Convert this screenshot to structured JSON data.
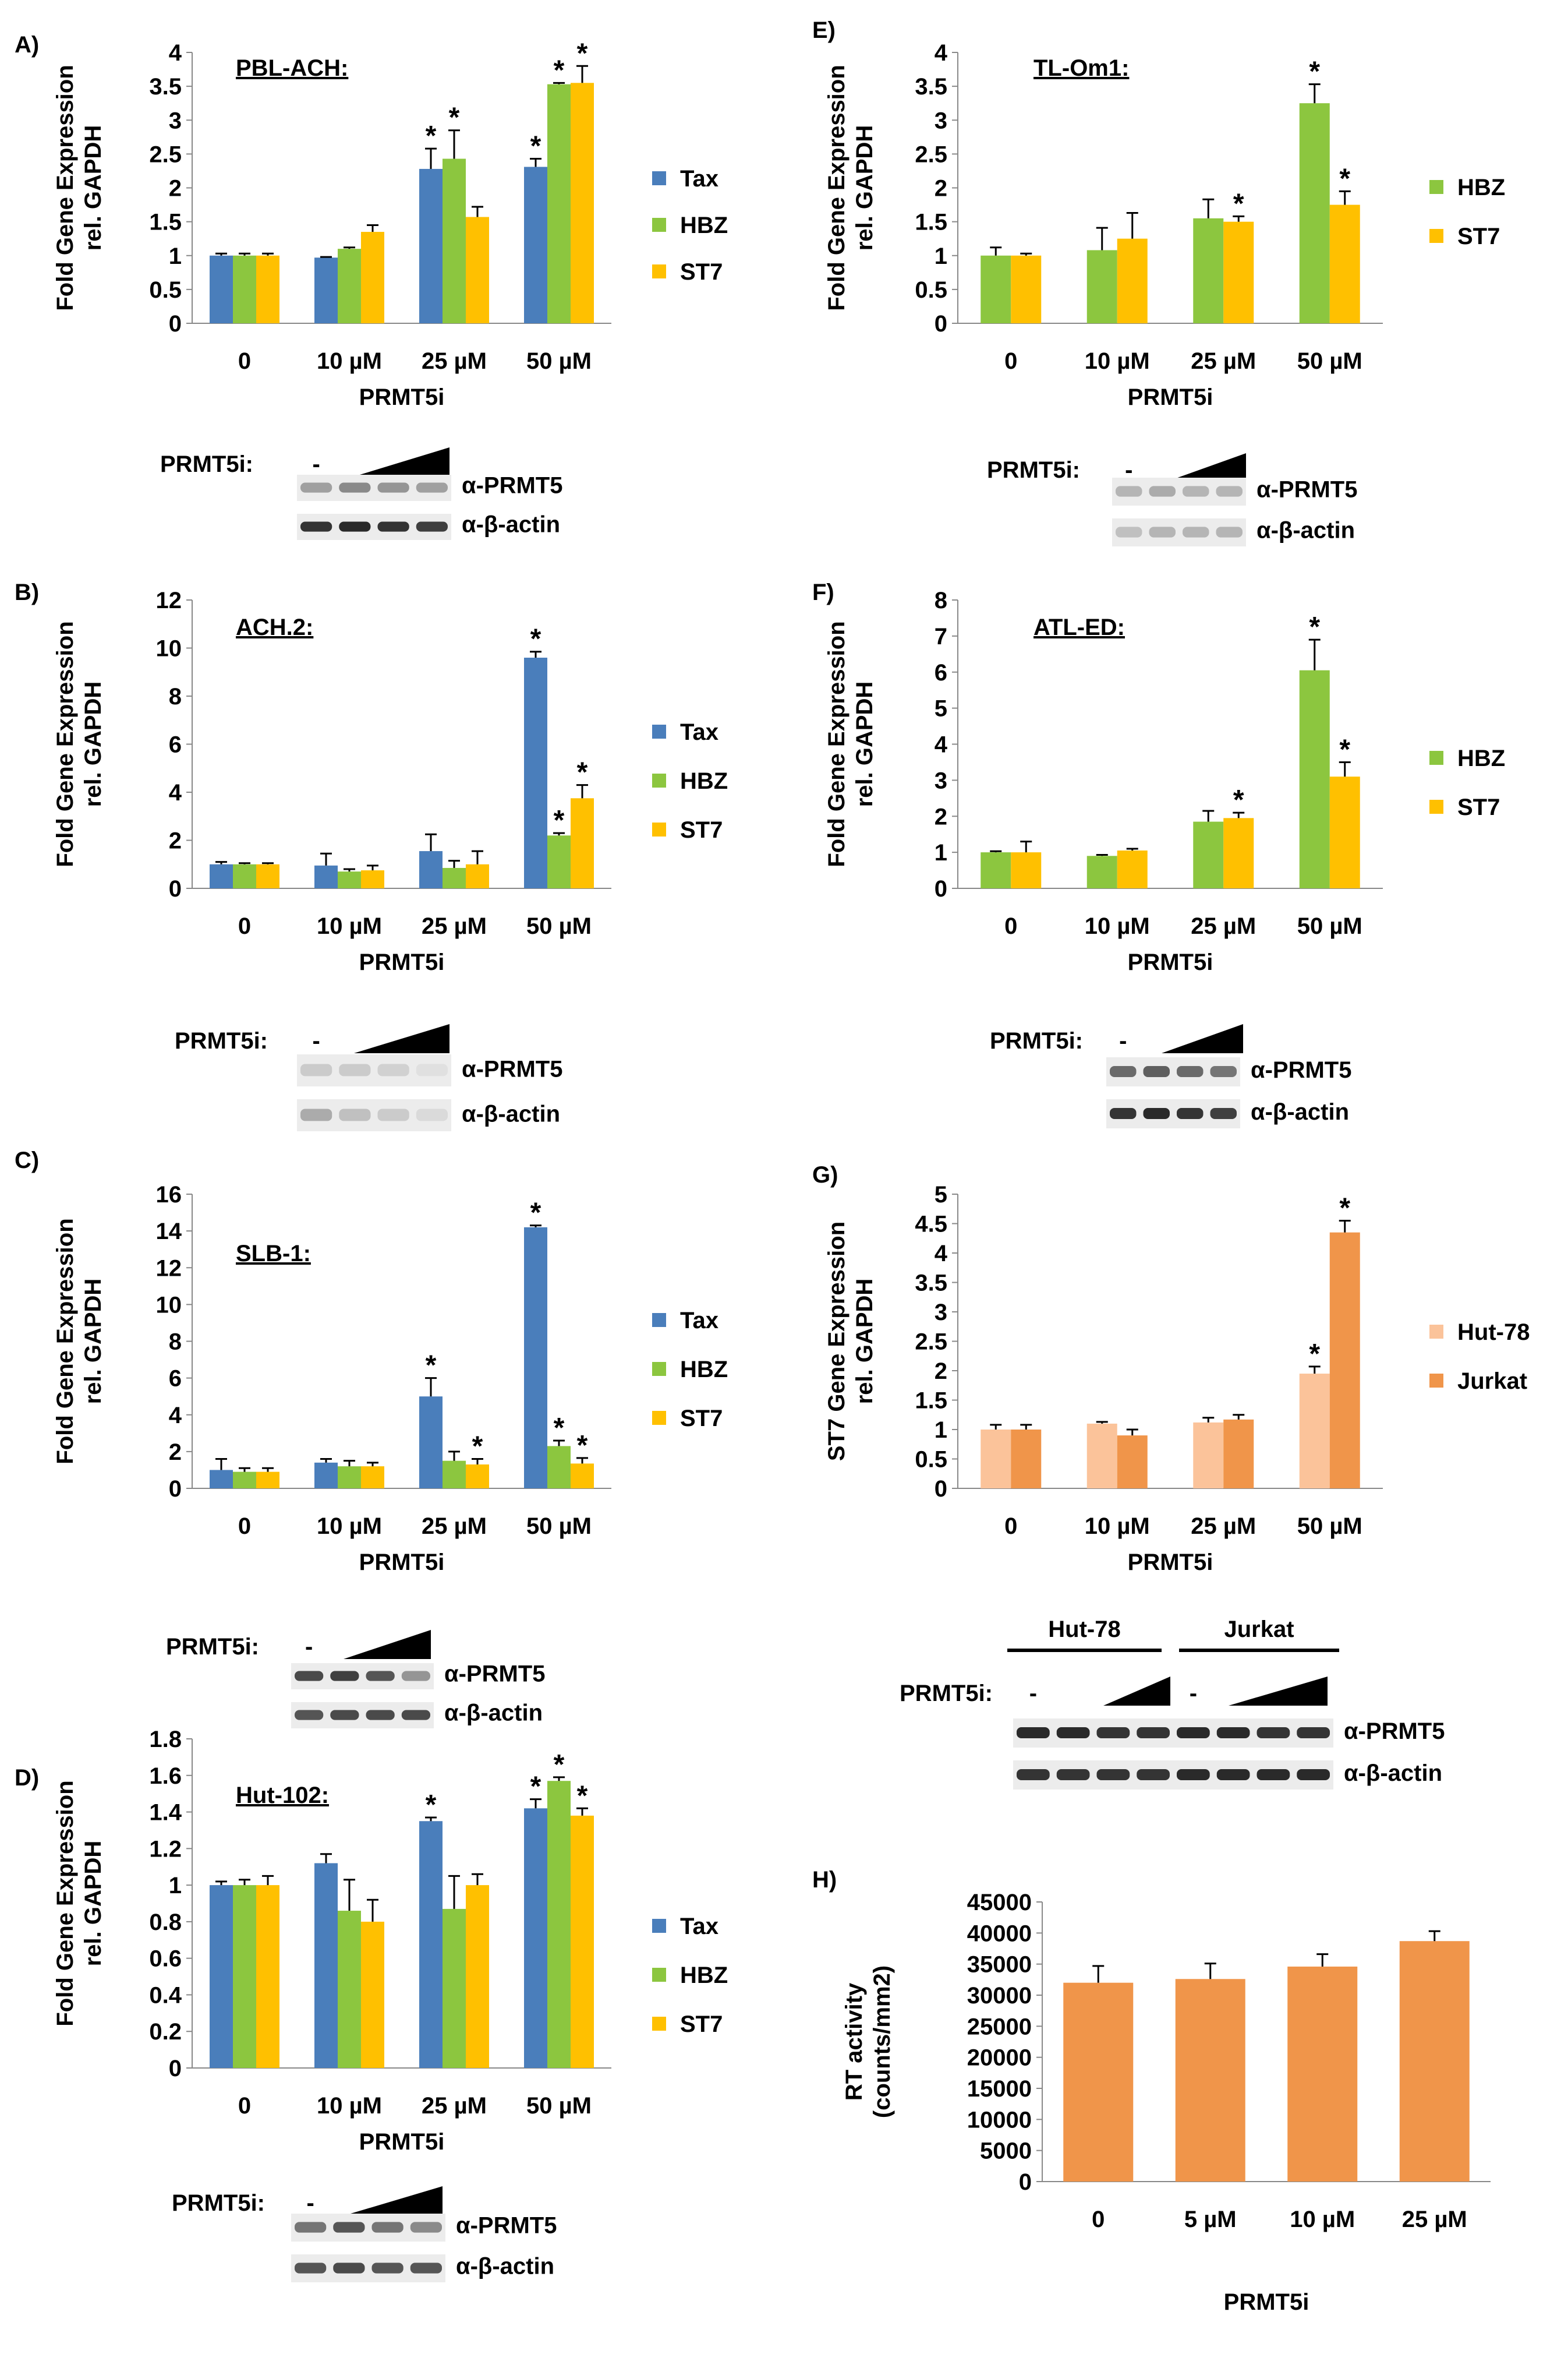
{
  "figure": {
    "panels": [
      {
        "letter": "A)",
        "cell_line": "PBL-ACH:"
      },
      {
        "letter": "B)",
        "cell_line": "ACH.2:"
      },
      {
        "letter": "C)",
        "cell_line": "SLB-1:"
      },
      {
        "letter": "D)",
        "cell_line": "Hut-102:"
      },
      {
        "letter": "E)",
        "cell_line": "TL-Om1:"
      },
      {
        "letter": "F)",
        "cell_line": "ATL-ED:"
      },
      {
        "letter": "G)",
        "cell_line": ""
      },
      {
        "letter": "H)",
        "cell_line": ""
      }
    ],
    "blots": {
      "treatment_label": "PRMT5i:",
      "minus_label": "-",
      "prmt5_label": "α-PRMT5",
      "actin_label": "α-β-actin",
      "group_labels": [
        "Hut-78",
        "Jurkat"
      ]
    },
    "colors": {
      "Tax": "#4a7ebb",
      "HBZ": "#8cc63f",
      "ST7": "#ffc000",
      "Hut-78": "#fbc39a",
      "Jurkat": "#f0954a",
      "RT": "#f0954a"
    }
  },
  "chart_data": [
    {
      "type": "bar",
      "panel": "A)",
      "title": "PBL-ACH:",
      "ylabel": "Fold Gene Expression rel. GAPDH",
      "xlabel": "PRMT5i",
      "categories": [
        "0",
        "10 µM",
        "25 µM",
        "50 µM"
      ],
      "ylim": [
        0,
        4
      ],
      "yticks": [
        "0",
        "0.5",
        "1",
        "1.5",
        "2",
        "2.5",
        "3",
        "3.5",
        "4"
      ],
      "series": [
        {
          "name": "Tax",
          "values": [
            1.0,
            0.97,
            2.28,
            2.31
          ],
          "errors": [
            0.03,
            0.01,
            0.3,
            0.12
          ],
          "sig": [
            false,
            false,
            true,
            true
          ]
        },
        {
          "name": "HBZ",
          "values": [
            1.0,
            1.1,
            2.43,
            3.53
          ],
          "errors": [
            0.03,
            0.02,
            0.42,
            0.02
          ],
          "sig": [
            false,
            false,
            true,
            true
          ]
        },
        {
          "name": "ST7",
          "values": [
            1.0,
            1.35,
            1.57,
            3.55
          ],
          "errors": [
            0.03,
            0.1,
            0.15,
            0.25
          ],
          "sig": [
            false,
            false,
            false,
            true
          ]
        }
      ]
    },
    {
      "type": "bar",
      "panel": "B)",
      "title": "ACH.2:",
      "ylabel": "Fold Gene Expression rel. GAPDH",
      "xlabel": "PRMT5i",
      "categories": [
        "0",
        "10 µM",
        "25 µM",
        "50 µM"
      ],
      "ylim": [
        0,
        12
      ],
      "yticks": [
        "0",
        "2",
        "4",
        "6",
        "8",
        "10",
        "12"
      ],
      "series": [
        {
          "name": "Tax",
          "values": [
            1.0,
            0.95,
            1.55,
            9.6
          ],
          "errors": [
            0.1,
            0.5,
            0.7,
            0.25
          ],
          "sig": [
            false,
            false,
            false,
            true
          ]
        },
        {
          "name": "HBZ",
          "values": [
            1.0,
            0.7,
            0.85,
            2.2
          ],
          "errors": [
            0.05,
            0.1,
            0.3,
            0.1
          ],
          "sig": [
            false,
            false,
            false,
            true
          ]
        },
        {
          "name": "ST7",
          "values": [
            1.0,
            0.75,
            1.0,
            3.75
          ],
          "errors": [
            0.05,
            0.2,
            0.55,
            0.55
          ],
          "sig": [
            false,
            false,
            false,
            true
          ]
        }
      ]
    },
    {
      "type": "bar",
      "panel": "C)",
      "title": "SLB-1:",
      "ylabel": "Fold Gene Expression rel. GAPDH",
      "xlabel": "PRMT5i",
      "categories": [
        "0",
        "10 µM",
        "25 µM",
        "50 µM"
      ],
      "ylim": [
        0,
        16
      ],
      "yticks": [
        "0",
        "2",
        "4",
        "6",
        "8",
        "10",
        "12",
        "14",
        "16"
      ],
      "series": [
        {
          "name": "Tax",
          "values": [
            1.0,
            1.4,
            5.0,
            14.2
          ],
          "errors": [
            0.6,
            0.2,
            1.0,
            0.1
          ],
          "sig": [
            false,
            false,
            true,
            true
          ]
        },
        {
          "name": "HBZ",
          "values": [
            0.9,
            1.2,
            1.5,
            2.3
          ],
          "errors": [
            0.2,
            0.3,
            0.5,
            0.3
          ],
          "sig": [
            false,
            false,
            false,
            true
          ]
        },
        {
          "name": "ST7",
          "values": [
            0.9,
            1.2,
            1.3,
            1.35
          ],
          "errors": [
            0.2,
            0.2,
            0.3,
            0.3
          ],
          "sig": [
            false,
            false,
            true,
            true
          ]
        }
      ]
    },
    {
      "type": "bar",
      "panel": "D)",
      "title": "Hut-102:",
      "ylabel": "Fold Gene Expression rel. GAPDH",
      "xlabel": "PRMT5i",
      "categories": [
        "0",
        "10 µM",
        "25 µM",
        "50 µM"
      ],
      "ylim": [
        0,
        1.8
      ],
      "yticks": [
        "0",
        "0.2",
        "0.4",
        "0.6",
        "0.8",
        "1",
        "1.2",
        "1.4",
        "1.6",
        "1.8"
      ],
      "series": [
        {
          "name": "Tax",
          "values": [
            1.0,
            1.12,
            1.35,
            1.42
          ],
          "errors": [
            0.02,
            0.05,
            0.02,
            0.05
          ],
          "sig": [
            false,
            false,
            true,
            true
          ]
        },
        {
          "name": "HBZ",
          "values": [
            1.0,
            0.86,
            0.87,
            1.57
          ],
          "errors": [
            0.03,
            0.17,
            0.18,
            0.02
          ],
          "sig": [
            false,
            false,
            false,
            true
          ]
        },
        {
          "name": "ST7",
          "values": [
            1.0,
            0.8,
            1.0,
            1.38
          ],
          "errors": [
            0.05,
            0.12,
            0.06,
            0.04
          ],
          "sig": [
            false,
            false,
            false,
            true
          ]
        }
      ]
    },
    {
      "type": "bar",
      "panel": "E)",
      "title": "TL-Om1:",
      "ylabel": "Fold Gene Expression rel. GAPDH",
      "xlabel": "PRMT5i",
      "categories": [
        "0",
        "10 µM",
        "25 µM",
        "50 µM"
      ],
      "ylim": [
        0,
        4
      ],
      "yticks": [
        "0",
        "0.5",
        "1",
        "1.5",
        "2",
        "2.5",
        "3",
        "3.5",
        "4"
      ],
      "series": [
        {
          "name": "HBZ",
          "values": [
            1.0,
            1.08,
            1.55,
            3.25
          ],
          "errors": [
            0.12,
            0.33,
            0.28,
            0.28
          ],
          "sig": [
            false,
            false,
            false,
            true
          ]
        },
        {
          "name": "ST7",
          "values": [
            1.0,
            1.25,
            1.5,
            1.75
          ],
          "errors": [
            0.03,
            0.38,
            0.08,
            0.2
          ],
          "sig": [
            false,
            false,
            true,
            true
          ]
        }
      ]
    },
    {
      "type": "bar",
      "panel": "F)",
      "title": "ATL-ED:",
      "ylabel": "Fold Gene Expression rel. GAPDH",
      "xlabel": "PRMT5i",
      "categories": [
        "0",
        "10 µM",
        "25 µM",
        "50 µM"
      ],
      "ylim": [
        0,
        8
      ],
      "yticks": [
        "0",
        "1",
        "2",
        "3",
        "4",
        "5",
        "6",
        "7",
        "8"
      ],
      "series": [
        {
          "name": "HBZ",
          "values": [
            1.0,
            0.9,
            1.85,
            6.05
          ],
          "errors": [
            0.03,
            0.03,
            0.3,
            0.85
          ],
          "sig": [
            false,
            false,
            false,
            true
          ]
        },
        {
          "name": "ST7",
          "values": [
            1.0,
            1.05,
            1.95,
            3.1
          ],
          "errors": [
            0.3,
            0.05,
            0.15,
            0.4
          ],
          "sig": [
            false,
            false,
            true,
            true
          ]
        }
      ]
    },
    {
      "type": "bar",
      "panel": "G)",
      "title": "",
      "ylabel": "ST7 Gene Expression rel. GAPDH",
      "xlabel": "PRMT5i",
      "categories": [
        "0",
        "10 µM",
        "25 µM",
        "50 µM"
      ],
      "ylim": [
        0,
        5
      ],
      "yticks": [
        "0",
        "0.5",
        "1",
        "1.5",
        "2",
        "2.5",
        "3",
        "3.5",
        "4",
        "4.5",
        "5"
      ],
      "series": [
        {
          "name": "Hut-78",
          "values": [
            1.0,
            1.1,
            1.12,
            1.95
          ],
          "errors": [
            0.08,
            0.03,
            0.08,
            0.12
          ],
          "sig": [
            false,
            false,
            false,
            true
          ]
        },
        {
          "name": "Jurkat",
          "values": [
            1.0,
            0.9,
            1.17,
            4.35
          ],
          "errors": [
            0.08,
            0.1,
            0.08,
            0.2
          ],
          "sig": [
            false,
            false,
            false,
            true
          ]
        }
      ]
    },
    {
      "type": "bar",
      "panel": "H)",
      "title": "",
      "ylabel": "RT activity (counts/mm2)",
      "xlabel": "PRMT5i",
      "categories": [
        "0",
        "5 µM",
        "10 µM",
        "25 µM"
      ],
      "ylim": [
        0,
        45000
      ],
      "yticks": [
        "0",
        "5000",
        "10000",
        "15000",
        "20000",
        "25000",
        "30000",
        "35000",
        "40000",
        "45000"
      ],
      "series": [
        {
          "name": "",
          "values": [
            32000,
            32600,
            34600,
            38700
          ],
          "errors": [
            2700,
            2500,
            2000,
            1600
          ],
          "sig": [
            false,
            false,
            false,
            false
          ]
        }
      ]
    }
  ]
}
